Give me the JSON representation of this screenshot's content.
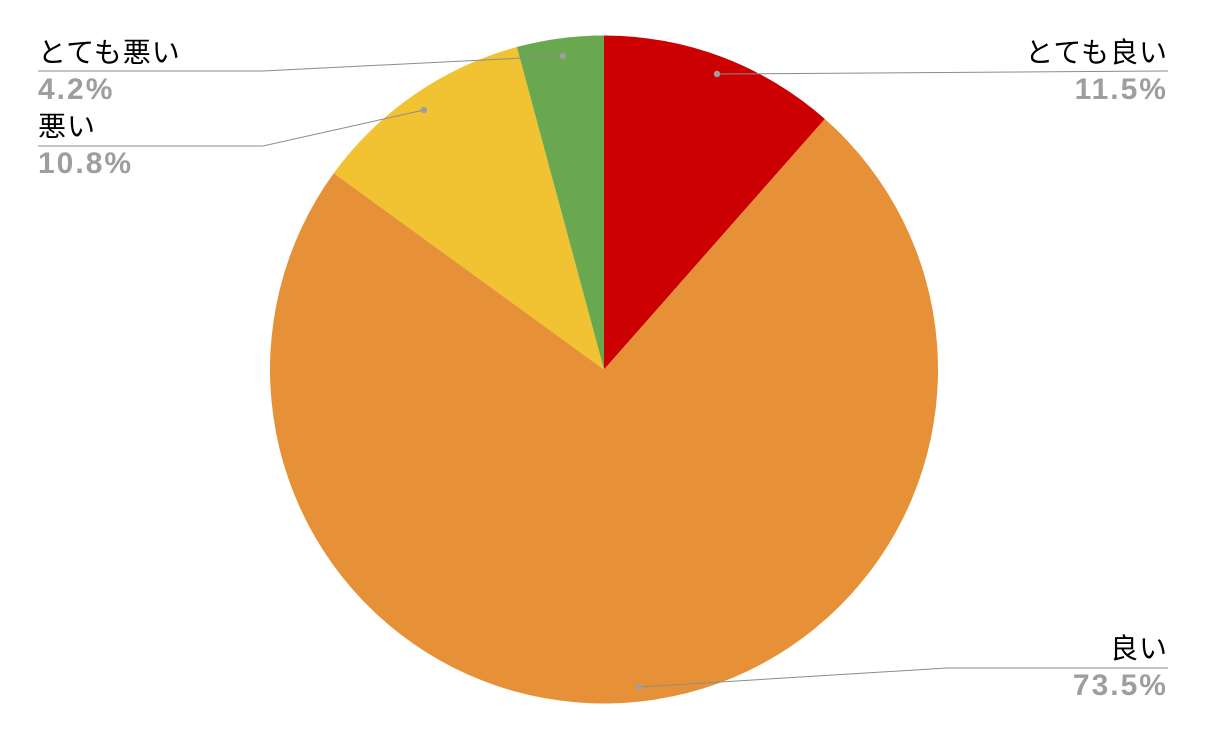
{
  "chart_data": {
    "type": "pie",
    "title": "",
    "start_position": "top",
    "direction": "clockwise",
    "legend_position": "outside-labels-with-leader-lines",
    "background_color": "#ffffff",
    "label_color": "#000000",
    "percent_color": "#9e9e9e",
    "leader_line_color": "#8c8c8c",
    "leader_dot_color": "#9e9e9e",
    "slices": [
      {
        "label": "とても良い",
        "value": 11.5,
        "pct_label": "11.5%",
        "color": "#cc0000"
      },
      {
        "label": "良い",
        "value": 73.5,
        "pct_label": "73.5%",
        "color": "#e69138"
      },
      {
        "label": "悪い",
        "value": 10.8,
        "pct_label": "10.8%",
        "color": "#f1c232"
      },
      {
        "label": "とても悪い",
        "value": 4.2,
        "pct_label": "4.2%",
        "color": "#6aa84f"
      }
    ]
  }
}
